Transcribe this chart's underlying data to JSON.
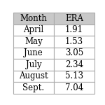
{
  "columns": [
    "Month",
    "ERA"
  ],
  "rows": [
    [
      "April",
      "1.91"
    ],
    [
      "May",
      "1.53"
    ],
    [
      "June",
      "3.05"
    ],
    [
      "July",
      "2.34"
    ],
    [
      "August",
      "5.13"
    ],
    [
      "Sept.",
      "7.04"
    ]
  ],
  "header_bg": "#c8c8c8",
  "row_bg": "#ffffff",
  "text_color": "#000000",
  "edge_color": "#aaaaaa",
  "font_size": 8.5,
  "figsize": [
    1.5,
    1.5
  ],
  "dpi": 100
}
